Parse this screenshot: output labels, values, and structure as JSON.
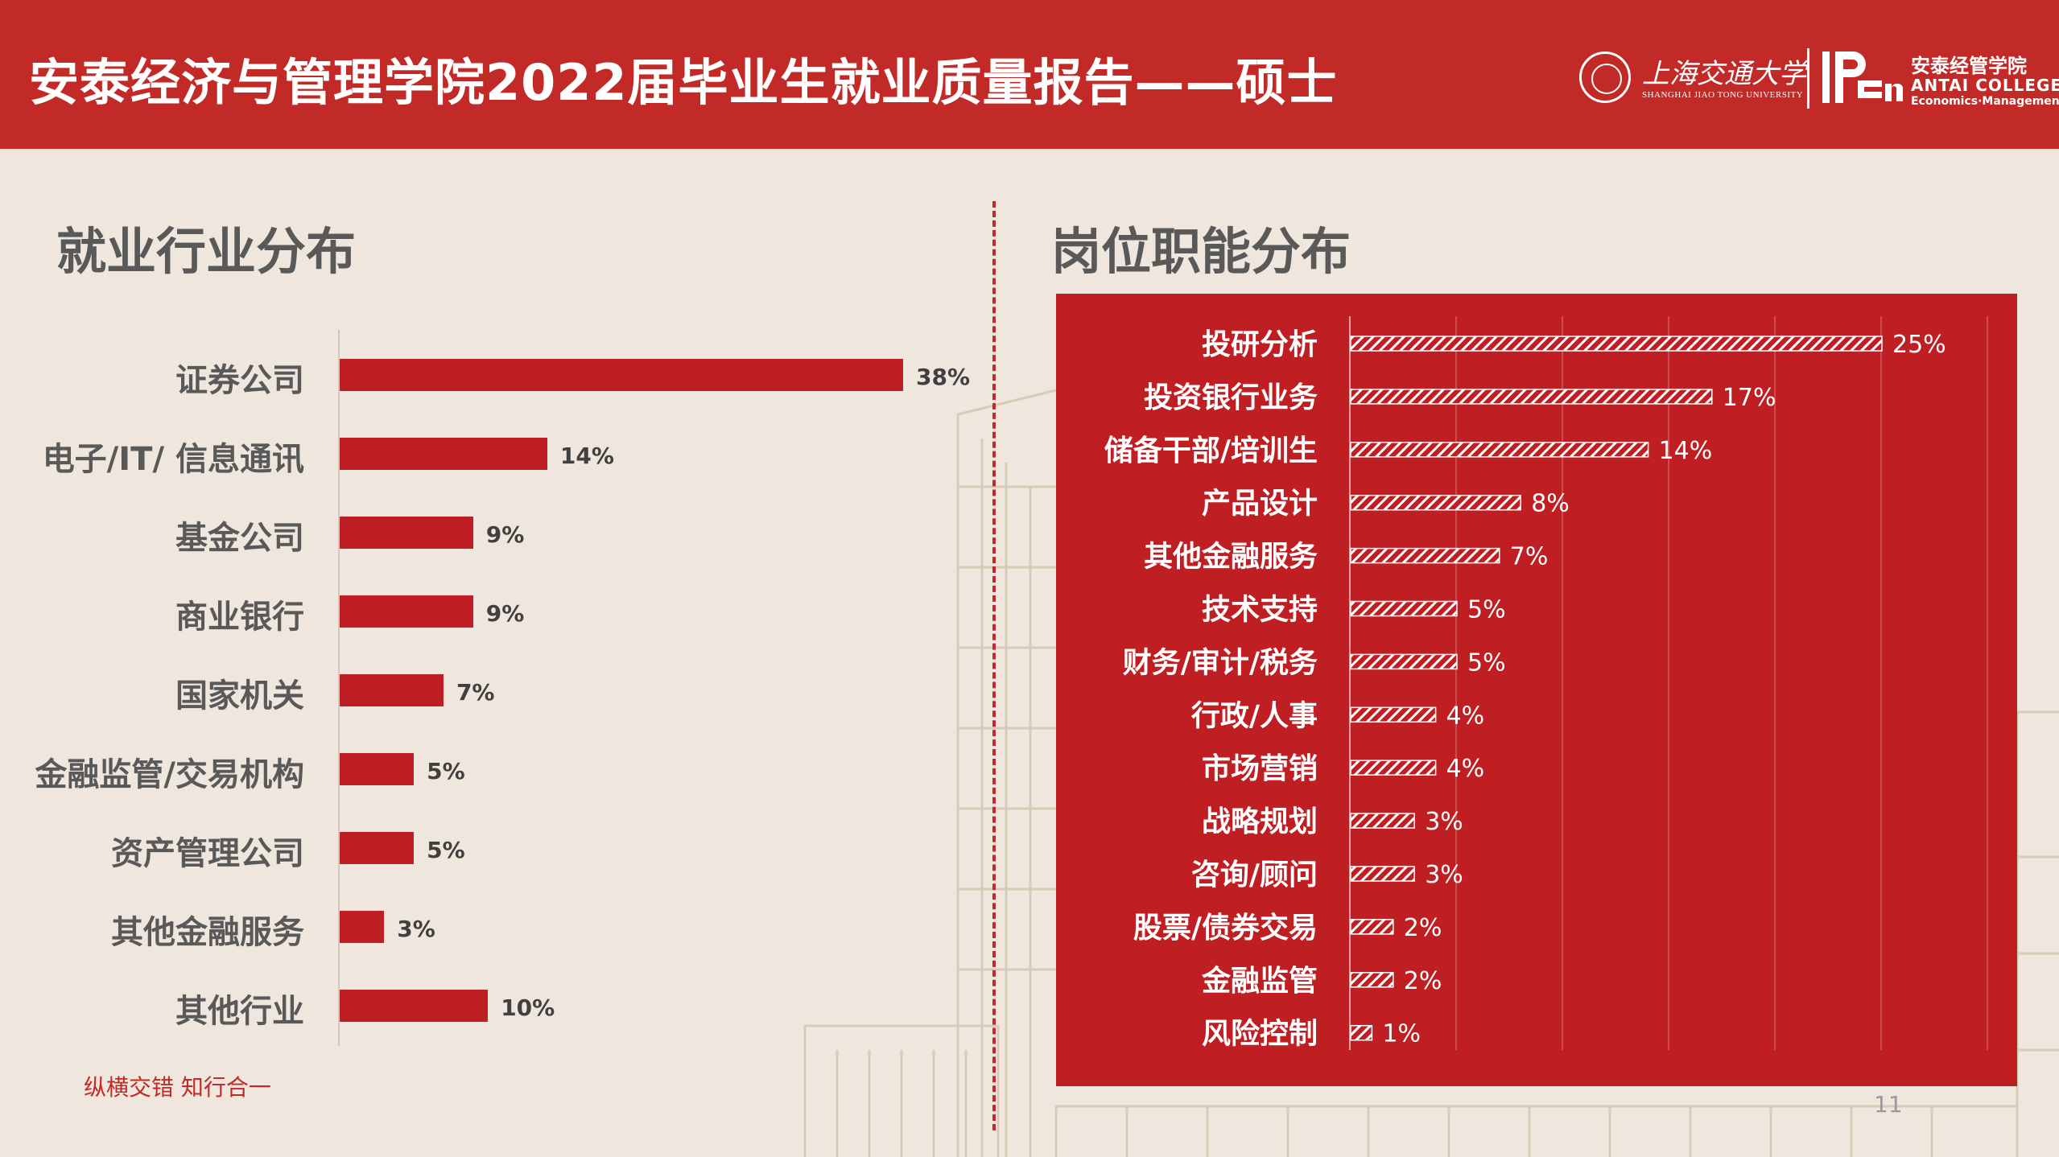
{
  "header": {
    "title": "安泰经济与管理学院2022届毕业生就业质量报告——硕士",
    "logo_sjtu_cn": "上海交通大学",
    "logo_sjtu_en": "SHANGHAI JIAO TONG UNIVERSITY",
    "logo_acem_cn": "安泰经管学院",
    "logo_acem_en1": "ANTAI COLLEGE",
    "logo_acem_en2": "Economics·Management"
  },
  "colors": {
    "brand_red": "#c12a26",
    "bar_red": "#be1e24",
    "panel_red": "#bf1e22",
    "background": "#efe7dd"
  },
  "chart_data": [
    {
      "type": "bar",
      "orientation": "horizontal",
      "title": "就业行业分布",
      "categories": [
        "证券公司",
        "电子/IT/ 信息通讯",
        "基金公司",
        "商业银行",
        "国家机关",
        "金融监管/交易机构",
        "资产管理公司",
        "其他金融服务",
        "其他行业"
      ],
      "values": [
        38,
        14,
        9,
        9,
        7,
        5,
        5,
        3,
        10
      ],
      "labels": [
        "38%",
        "14%",
        "9%",
        "9%",
        "7%",
        "5%",
        "5%",
        "3%",
        "10%"
      ],
      "unit": "%",
      "xlim": [
        0,
        38
      ],
      "grid": false,
      "legend": "none"
    },
    {
      "type": "bar",
      "orientation": "horizontal",
      "title": "岗位职能分布",
      "categories": [
        "投研分析",
        "投资银行业务",
        "储备干部/培训生",
        "产品设计",
        "其他金融服务",
        "技术支持",
        "财务/审计/税务",
        "行政/人事",
        "市场营销",
        "战略规划",
        "咨询/顾问",
        "股票/债券交易",
        "金融监管",
        "风险控制"
      ],
      "values": [
        25,
        17,
        14,
        8,
        7,
        5,
        5,
        4,
        4,
        3,
        3,
        2,
        2,
        1
      ],
      "labels": [
        "25%",
        "17%",
        "14%",
        "8%",
        "7%",
        "5%",
        "5%",
        "4%",
        "4%",
        "3%",
        "3%",
        "2%",
        "2%",
        "1%"
      ],
      "unit": "%",
      "xlim": [
        0,
        30
      ],
      "grid": true,
      "legend": "none"
    }
  ],
  "footer": {
    "slogan": "纵横交错 知行合一",
    "page": "11"
  }
}
